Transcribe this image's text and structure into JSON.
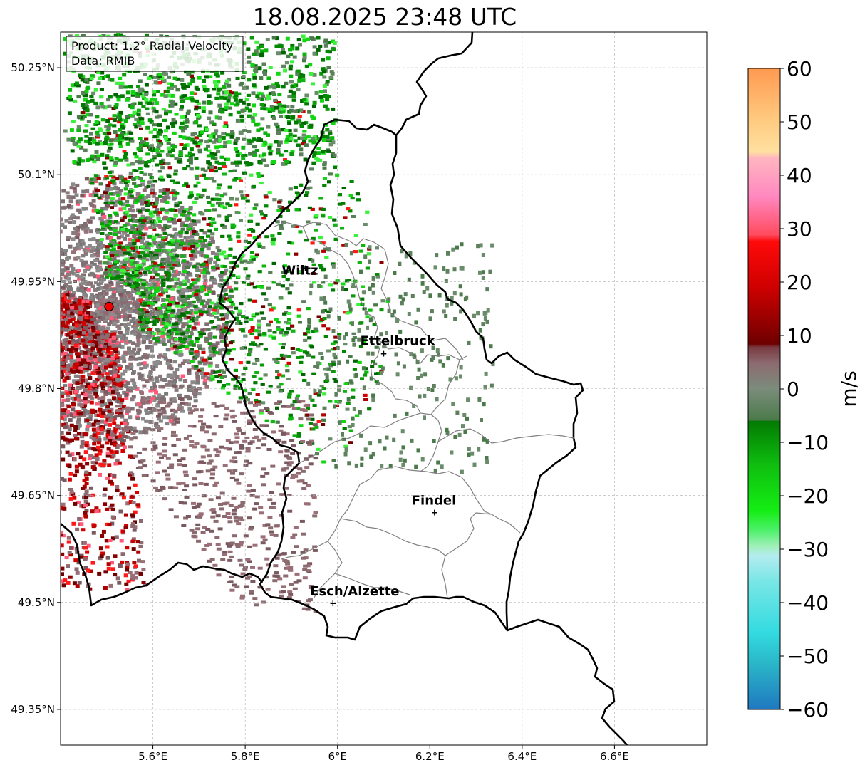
{
  "title": "18.08.2025 23:48 UTC",
  "info": {
    "product": "Product: 1.2° Radial Velocity",
    "data": "Data: RMIB"
  },
  "map": {
    "lon_range": [
      5.4,
      6.8
    ],
    "lat_range": [
      49.3,
      50.3
    ],
    "lat_ticks": [
      {
        "value": 50.25,
        "label": "50.25°N"
      },
      {
        "value": 50.1,
        "label": "50.1°N"
      },
      {
        "value": 49.95,
        "label": "49.95°N"
      },
      {
        "value": 49.8,
        "label": "49.8°N"
      },
      {
        "value": 49.65,
        "label": "49.65°N"
      },
      {
        "value": 49.5,
        "label": "49.5°N"
      },
      {
        "value": 49.35,
        "label": "49.35°N"
      }
    ],
    "lon_ticks": [
      {
        "value": 5.6,
        "label": "5.6°E"
      },
      {
        "value": 5.8,
        "label": "5.8°E"
      },
      {
        "value": 6.0,
        "label": "6°E"
      },
      {
        "value": 6.2,
        "label": "6.2°E"
      },
      {
        "value": 6.4,
        "label": "6.4°E"
      },
      {
        "value": 6.6,
        "label": "6.6°E"
      }
    ],
    "radar_site": {
      "lon": 5.505,
      "lat": 49.915
    },
    "cities": [
      {
        "name": "Wiltz",
        "lon": 5.93,
        "lat": 49.97
      },
      {
        "name": "Ettelbruck",
        "lon": 6.1,
        "lat": 49.85
      },
      {
        "name": "Findel",
        "lon": 6.21,
        "lat": 49.627
      },
      {
        "name": "Esch/Alzette",
        "lon": 5.99,
        "lat": 49.5
      }
    ]
  },
  "colorbar": {
    "label": "m/s",
    "min": -60,
    "max": 60,
    "ticks": [
      60,
      50,
      40,
      30,
      20,
      10,
      0,
      -10,
      -20,
      -30,
      -40,
      -50,
      -60
    ],
    "tick_labels": [
      "60",
      "50",
      "40",
      "30",
      "20",
      "10",
      "0",
      "−10",
      "−20",
      "−30",
      "−40",
      "−50",
      "−60"
    ]
  }
}
